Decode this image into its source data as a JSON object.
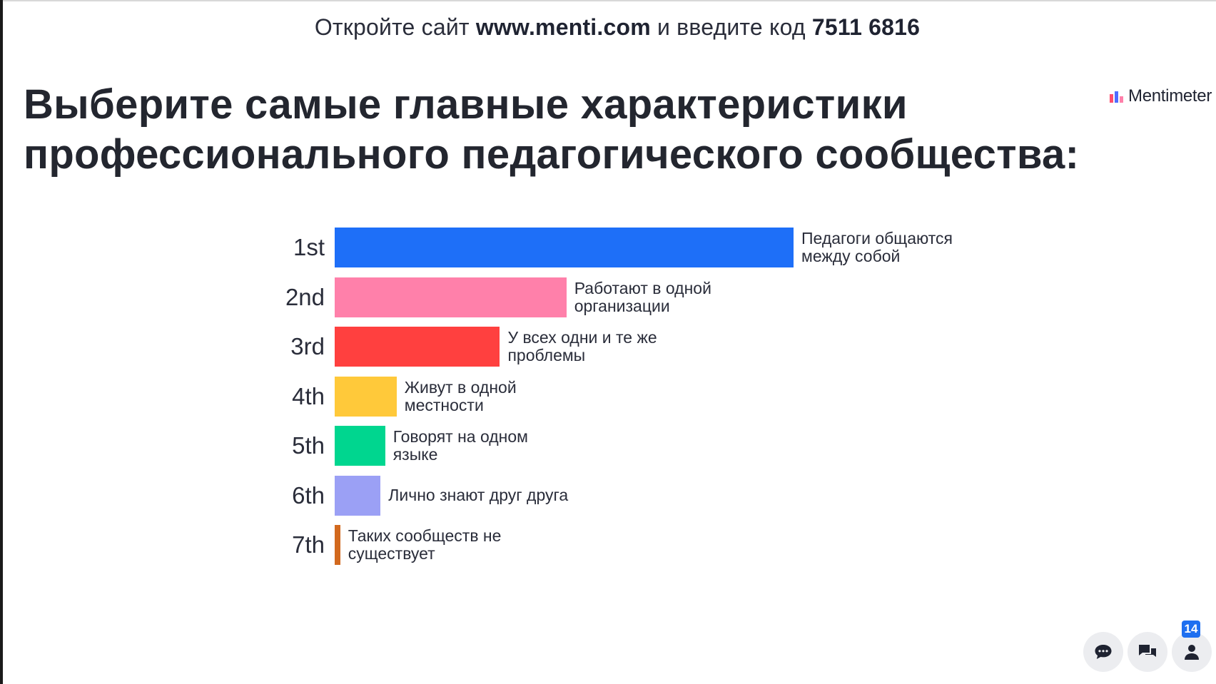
{
  "header": {
    "join_prefix": "Откройте сайт",
    "join_url": "www.menti.com",
    "join_middle": "и введите код",
    "join_code": "7511 6816"
  },
  "title_line1": "Выберите самые главные характеристики",
  "title_line2": "профессионального педагогического сообщества:",
  "logo_text": "Mentimeter",
  "chart_data": {
    "type": "bar",
    "orientation": "horizontal",
    "ranks": [
      "1st",
      "2nd",
      "3rd",
      "4th",
      "5th",
      "6th",
      "7th"
    ],
    "categories": [
      "Педагоги общаются\nмежду собой",
      "Работают в одной\nорганизации",
      "У всех одни и те же\nпроблемы",
      "Живут в одной\nместности",
      "Говорят на одном\nязыке",
      "Лично знают друг друга",
      "Таких сообществ не\nсуществует"
    ],
    "values": [
      100,
      50.5,
      36,
      13.5,
      11,
      10,
      1.2
    ],
    "colors": [
      "#1e6ff8",
      "#ff80aa",
      "#ff403f",
      "#ffc93a",
      "#00d68f",
      "#9ba0f5",
      "#d2691e"
    ],
    "xlim": [
      0,
      100
    ]
  },
  "controls": {
    "participants_count": "14",
    "icons": [
      "chat-icon",
      "qa-icon",
      "participants-icon"
    ]
  }
}
